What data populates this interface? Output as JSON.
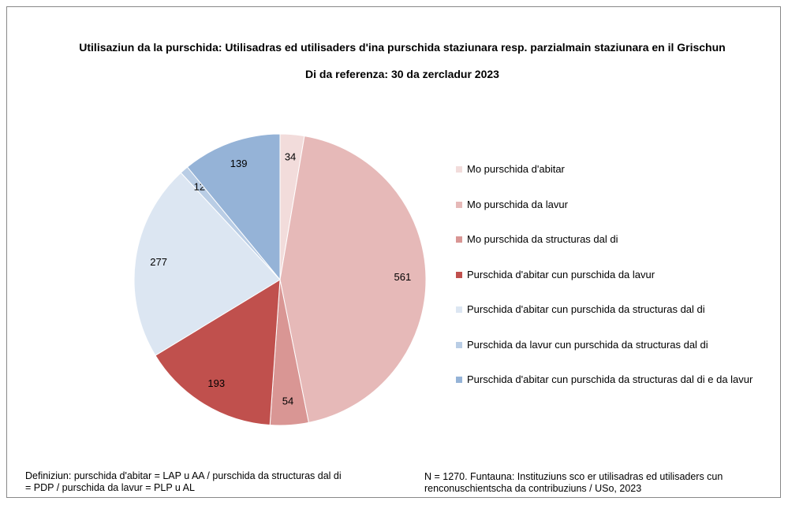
{
  "chart_data": {
    "type": "pie",
    "title": "Utilisaziun da la purschida: Utilisadras ed utilisaders d'ina purschida staziunara resp. parzialmain staziunara en il Grischun",
    "subtitle": "Di da referenza: 30 da zercladur 2023",
    "categories": [
      "Mo purschida d'abitar",
      "Mo purschida da lavur",
      "Mo purschida da structuras dal di",
      "Purschida d'abitar cun purschida da lavur",
      "Purschida d'abitar cun purschida da structuras dal di",
      "Purschida da lavur cun purschida da structuras dal di",
      "Purschida d'abitar cun purschida da structuras dal di e da lavur"
    ],
    "values": [
      34,
      561,
      54,
      193,
      277,
      12,
      139
    ],
    "colors": [
      "#f2dcdb",
      "#e6b9b8",
      "#d99694",
      "#c0504d",
      "#dce6f2",
      "#b9cde5",
      "#95b3d7"
    ],
    "legend": "right",
    "notes": [
      "Definiziun: purschida d'abitar = LAP u AA / purschida da structuras dal di = PDP / purschida da lavur = PLP u AL",
      "N = 1270. Funtauna: Instituziuns sco er utilisadras ed utilisaders cun renconuschientscha da contribuziuns / USo, 2023"
    ]
  }
}
